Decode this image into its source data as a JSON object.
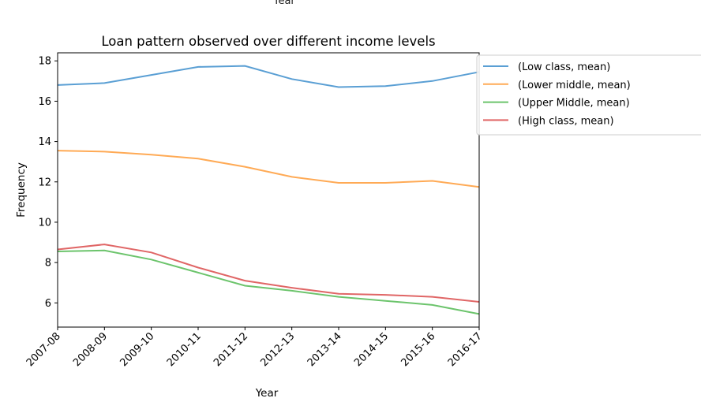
{
  "top_cut_label": "Year",
  "chart_data": {
    "type": "line",
    "title": "Loan pattern observed over different income levels",
    "xlabel": "Year",
    "ylabel": "Frequency",
    "categories": [
      "2007-08",
      "2008-09",
      "2009-10",
      "2010-11",
      "2011-12",
      "2012-13",
      "2013-14",
      "2014-15",
      "2015-16",
      "2016-17"
    ],
    "ylim": [
      4.8,
      18.4
    ],
    "yticks": [
      6,
      8,
      10,
      12,
      14,
      16,
      18
    ],
    "grid": false,
    "legend_position": "outside-right",
    "series": [
      {
        "name": "(Low class, mean)",
        "color": "#5a9fd4",
        "values": [
          16.8,
          16.9,
          17.3,
          17.7,
          17.75,
          17.1,
          16.7,
          16.75,
          17.0,
          17.45
        ]
      },
      {
        "name": "(Lower middle, mean)",
        "color": "#ffaa55",
        "values": [
          13.55,
          13.5,
          13.35,
          13.15,
          12.75,
          12.25,
          11.95,
          11.95,
          12.05,
          11.75
        ]
      },
      {
        "name": "(Upper Middle, mean)",
        "color": "#6cc46c",
        "values": [
          8.55,
          8.6,
          8.15,
          7.5,
          6.85,
          6.6,
          6.3,
          6.1,
          5.9,
          5.45
        ]
      },
      {
        "name": "(High class, mean)",
        "color": "#e06666",
        "values": [
          8.65,
          8.9,
          8.5,
          7.75,
          7.1,
          6.75,
          6.45,
          6.4,
          6.3,
          6.05
        ]
      }
    ]
  }
}
